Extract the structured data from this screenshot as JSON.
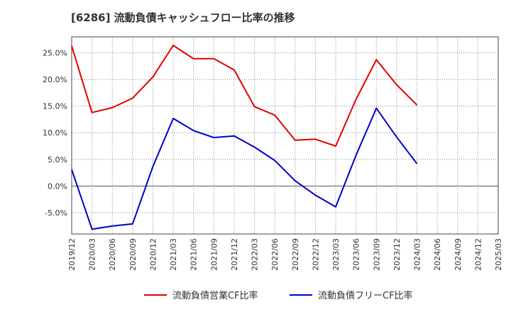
{
  "chart_data": {
    "type": "line",
    "title": "[6286]  流動負債キャッシュフロー比率の推移",
    "xlabel": "",
    "ylabel": "",
    "ylim": [
      -9,
      28
    ],
    "yticks": [
      -5,
      0,
      5,
      10,
      15,
      20,
      25
    ],
    "ytick_labels": [
      "-5.0%",
      "0.0%",
      "5.0%",
      "10.0%",
      "15.0%",
      "20.0%",
      "25.0%"
    ],
    "x_labels": [
      "2019/12",
      "2020/03",
      "2020/06",
      "2020/09",
      "2020/12",
      "2021/03",
      "2021/06",
      "2021/09",
      "2021/12",
      "2022/03",
      "2022/06",
      "2022/09",
      "2022/12",
      "2023/03",
      "2023/06",
      "2023/09",
      "2023/12",
      "2024/03",
      "2024/06",
      "2024/09",
      "2024/12",
      "2025/03"
    ],
    "legend_position": "bottom",
    "series": [
      {
        "name": "流動負債営業CF比率",
        "color": "#e00000",
        "values": [
          26.3,
          13.8,
          14.7,
          16.5,
          20.5,
          26.4,
          23.9,
          23.9,
          21.8,
          14.9,
          13.3,
          8.6,
          8.8,
          7.5,
          16.3,
          23.7,
          19.0,
          15.2,
          null,
          null,
          null,
          null
        ]
      },
      {
        "name": "流動負債フリーCF比率",
        "color": "#0000cc",
        "values": [
          3.1,
          -8.1,
          -7.5,
          -7.1,
          3.7,
          12.7,
          10.4,
          9.1,
          9.4,
          7.3,
          4.8,
          1.0,
          -1.7,
          -3.9,
          5.8,
          14.6,
          9.2,
          4.2,
          null,
          null,
          null,
          null
        ]
      }
    ]
  }
}
